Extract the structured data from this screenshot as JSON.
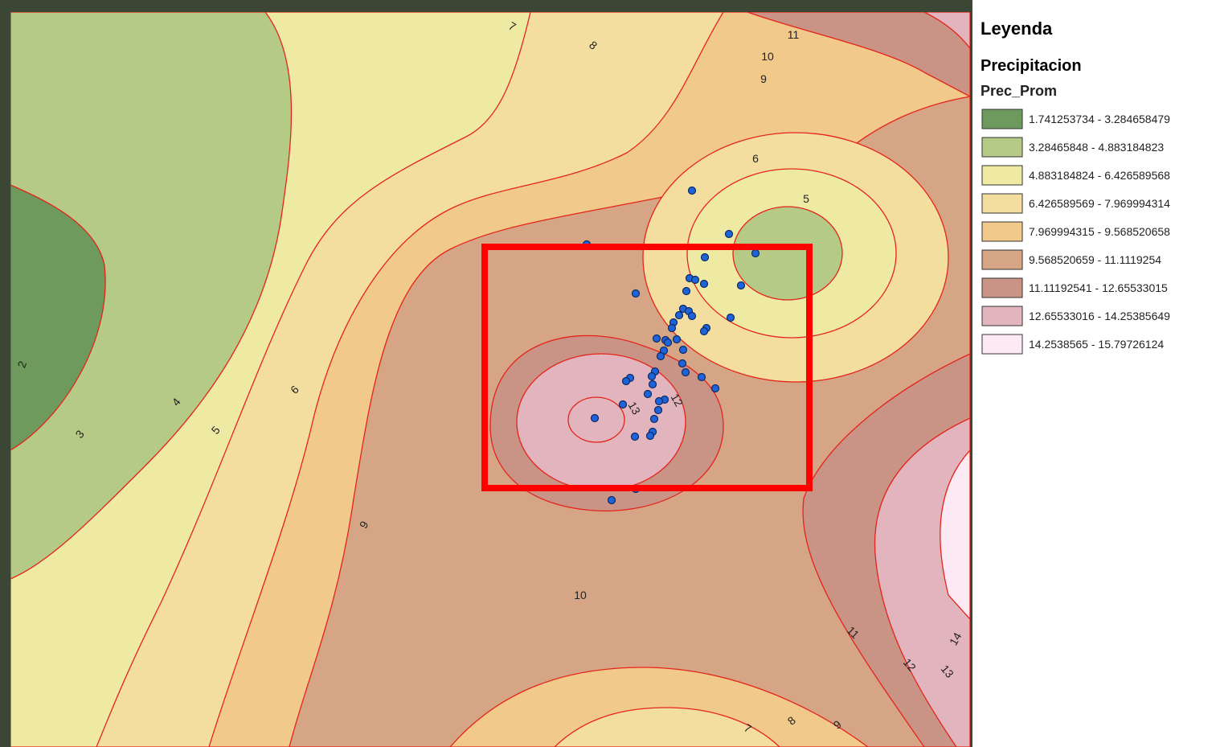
{
  "legend": {
    "title": "Leyenda",
    "layer": "Precipitacion",
    "field": "Prec_Prom",
    "classes": [
      {
        "label": "1.741253734 - 3.284658479",
        "color": "#6e9a5e"
      },
      {
        "label": "3.28465848 - 4.883184823",
        "color": "#b5ca86"
      },
      {
        "label": "4.883184824 - 6.426589568",
        "color": "#eeeaa3"
      },
      {
        "label": "6.426589569 - 7.969994314",
        "color": "#f3dea0"
      },
      {
        "label": "7.969994315 - 9.568520658",
        "color": "#f1c98a"
      },
      {
        "label": "9.568520659 - 11.1119254",
        "color": "#d6a585"
      },
      {
        "label": "11.11192541 - 12.65533015",
        "color": "#c99386"
      },
      {
        "label": "12.65533016 - 14.25385649",
        "color": "#e2b4bd"
      },
      {
        "label": "14.2538565 - 15.79726124",
        "color": "#fde9f3"
      }
    ]
  },
  "contour_labels": [
    "7",
    "8",
    "11",
    "10",
    "9",
    "6",
    "5",
    "2",
    "3",
    "4",
    "5",
    "6",
    "13",
    "12",
    "9",
    "10",
    "11",
    "12",
    "13",
    "14",
    "7",
    "8",
    "9"
  ]
}
